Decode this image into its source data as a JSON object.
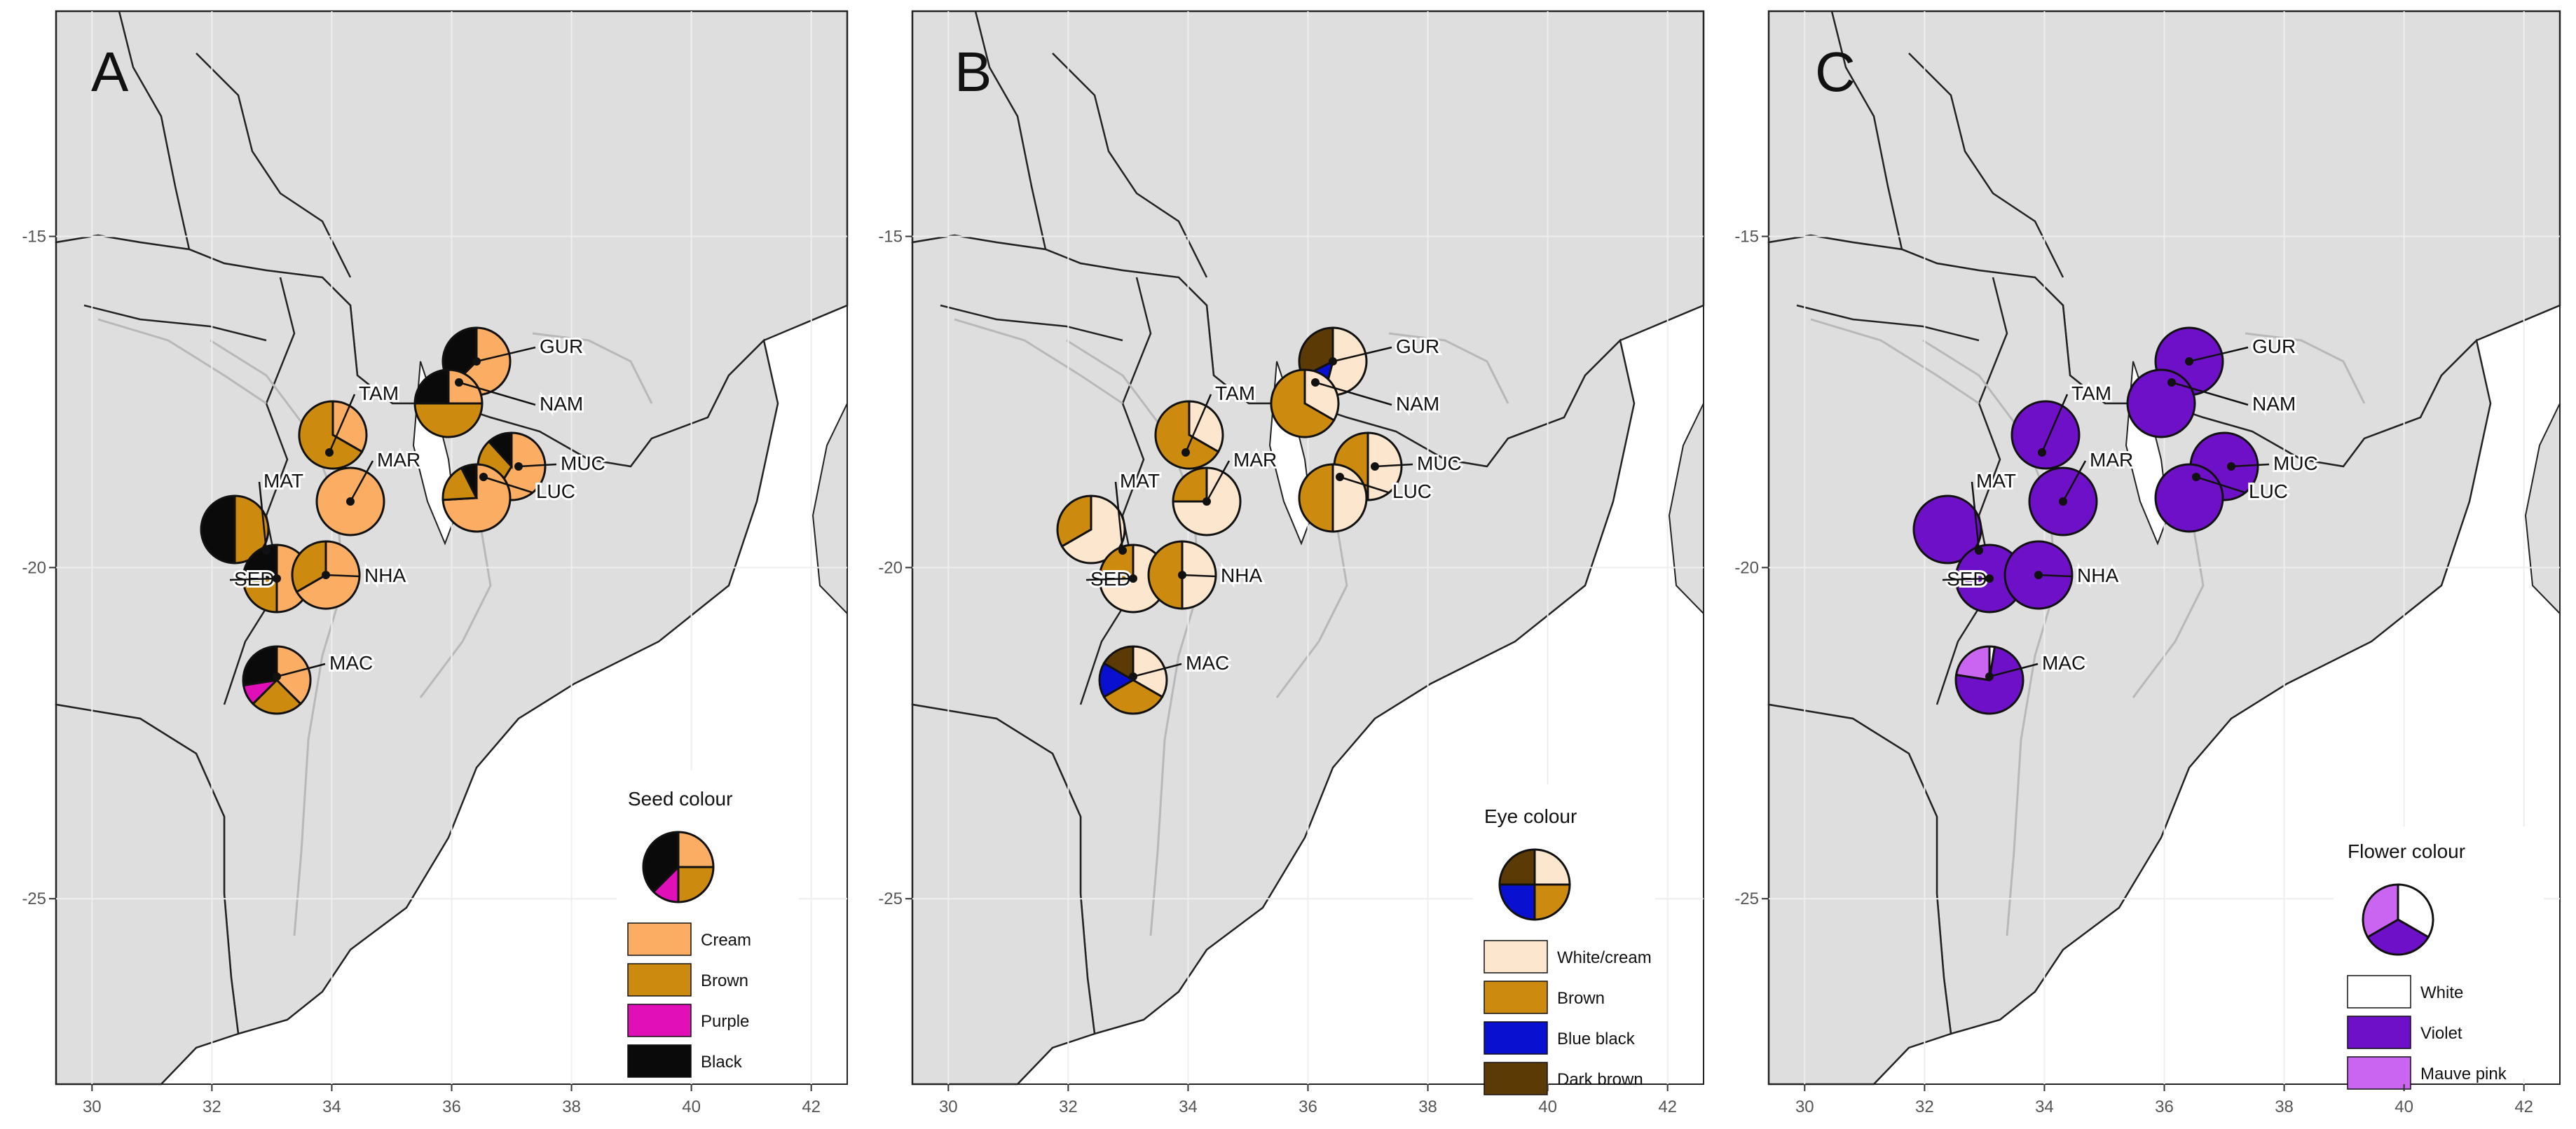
{
  "figure": {
    "x_ticks": [
      "30",
      "32",
      "34",
      "36",
      "38",
      "40",
      "42"
    ],
    "y_ticks": [
      "-15",
      "-20",
      "-25"
    ],
    "panels": [
      {
        "letter": "A",
        "legend_title": "Seed colour",
        "legend_items": [
          {
            "label": "Cream",
            "color": "#FBAE63"
          },
          {
            "label": "Brown",
            "color": "#CC8A0F"
          },
          {
            "label": "Purple",
            "color": "#E00FB8"
          },
          {
            "label": "Black",
            "color": "#0A0A0A"
          }
        ],
        "legend_pie": [
          1,
          1,
          0.5,
          1.5
        ],
        "sites": [
          {
            "code": "GUR",
            "slices": [
              2,
              0,
              0,
              1.2
            ]
          },
          {
            "code": "NAM",
            "slices": [
              1,
              2,
              0,
              1
            ]
          },
          {
            "code": "TAM",
            "slices": [
              1,
              2,
              0,
              0
            ]
          },
          {
            "code": "MUC",
            "slices": [
              2,
              1,
              0,
              0.4
            ]
          },
          {
            "code": "MAR",
            "slices": [
              1,
              0,
              0,
              0
            ]
          },
          {
            "code": "LUC",
            "slices": [
              2,
              0.5,
              0,
              0.2
            ]
          },
          {
            "code": "MAT",
            "slices": [
              0,
              2,
              0,
              2
            ]
          },
          {
            "code": "SED",
            "slices": [
              2,
              1,
              0,
              1
            ]
          },
          {
            "code": "NHA",
            "slices": [
              2,
              1,
              0,
              0
            ]
          },
          {
            "code": "MAC",
            "slices": [
              1.5,
              1,
              0.4,
              1.1
            ]
          }
        ]
      },
      {
        "letter": "B",
        "legend_title": "Eye colour",
        "legend_items": [
          {
            "label": "White/cream",
            "color": "#FDE6CE"
          },
          {
            "label": "Brown",
            "color": "#CC8A0F"
          },
          {
            "label": "Blue black",
            "color": "#0A10D0"
          },
          {
            "label": "Dark brown",
            "color": "#5C3A06"
          }
        ],
        "legend_pie": [
          1,
          1,
          1,
          1
        ],
        "sites": [
          {
            "code": "GUR",
            "slices": [
              2,
              0,
              0.5,
              1.2
            ]
          },
          {
            "code": "NAM",
            "slices": [
              1,
              2,
              0,
              0
            ]
          },
          {
            "code": "TAM",
            "slices": [
              1,
              2,
              0,
              0
            ]
          },
          {
            "code": "MUC",
            "slices": [
              1,
              1,
              0,
              0
            ]
          },
          {
            "code": "MAR",
            "slices": [
              3,
              1,
              0,
              0
            ]
          },
          {
            "code": "LUC",
            "slices": [
              1,
              1,
              0,
              0
            ]
          },
          {
            "code": "MAT",
            "slices": [
              2,
              1,
              0,
              0
            ]
          },
          {
            "code": "SED",
            "slices": [
              3,
              1,
              0,
              0
            ]
          },
          {
            "code": "NHA",
            "slices": [
              1,
              1,
              0,
              0
            ]
          },
          {
            "code": "MAC",
            "slices": [
              1,
              1,
              0.5,
              0.5
            ]
          }
        ]
      },
      {
        "letter": "C",
        "legend_title": "Flower colour",
        "legend_items": [
          {
            "label": "White",
            "color": "#FFFFFF"
          },
          {
            "label": "Violet",
            "color": "#6E10C8"
          },
          {
            "label": "Mauve pink",
            "color": "#C965F0"
          }
        ],
        "legend_pie": [
          1,
          1,
          1
        ],
        "sites": [
          {
            "code": "GUR",
            "slices": [
              0,
              1,
              0
            ]
          },
          {
            "code": "NAM",
            "slices": [
              0,
              1,
              0
            ]
          },
          {
            "code": "TAM",
            "slices": [
              0,
              1,
              0
            ]
          },
          {
            "code": "MUC",
            "slices": [
              0,
              1,
              0
            ]
          },
          {
            "code": "MAR",
            "slices": [
              0,
              1,
              0
            ]
          },
          {
            "code": "LUC",
            "slices": [
              0,
              1,
              0
            ]
          },
          {
            "code": "MAT",
            "slices": [
              0,
              1,
              0
            ]
          },
          {
            "code": "SED",
            "slices": [
              0,
              1,
              0
            ]
          },
          {
            "code": "NHA",
            "slices": [
              0,
              1,
              0
            ]
          },
          {
            "code": "MAC",
            "slices": [
              0.1,
              3,
              0.9
            ]
          }
        ]
      }
    ]
  }
}
